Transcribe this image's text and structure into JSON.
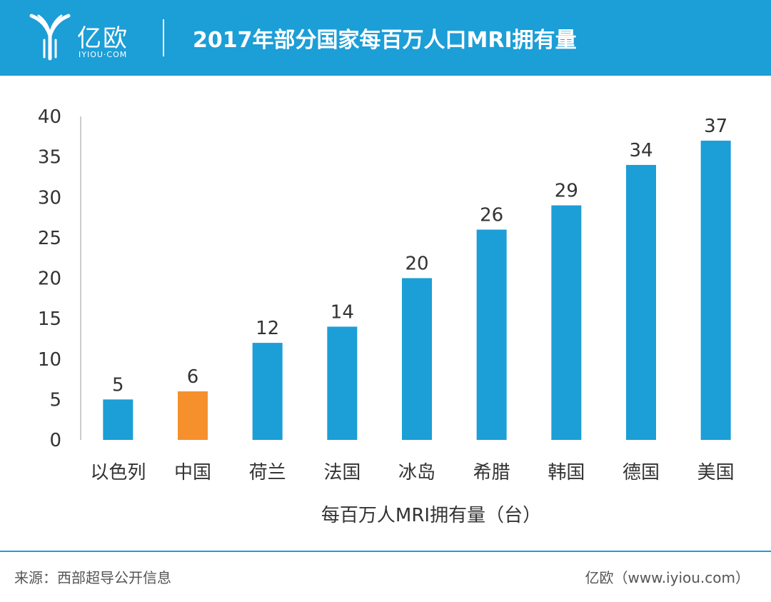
{
  "brand": {
    "name": "亿欧",
    "domain": "IYIOU·COM"
  },
  "title": "2017年部分国家每百万人口MRI拥有量",
  "colors": {
    "header": "#1c9ed7",
    "bar": "#1c9ed7",
    "highlight": "#f5902c",
    "axis_text": "#333333"
  },
  "chart_data": {
    "type": "bar",
    "categories": [
      "以色列",
      "中国",
      "荷兰",
      "法国",
      "冰岛",
      "希腊",
      "韩国",
      "德国",
      "美国"
    ],
    "values": [
      5,
      6,
      12,
      14,
      20,
      26,
      29,
      34,
      37
    ],
    "highlight_category": "中国",
    "xlabel": "每百万人MRI拥有量（台）",
    "ylabel": "",
    "ylim": [
      0,
      40
    ],
    "yticks": [
      0,
      5,
      10,
      15,
      20,
      25,
      30,
      35,
      40
    ],
    "grid": false,
    "data_labels": true
  },
  "footer": {
    "source": "来源：西部超导公开信息",
    "credit": "亿欧（www.iyiou.com）"
  }
}
